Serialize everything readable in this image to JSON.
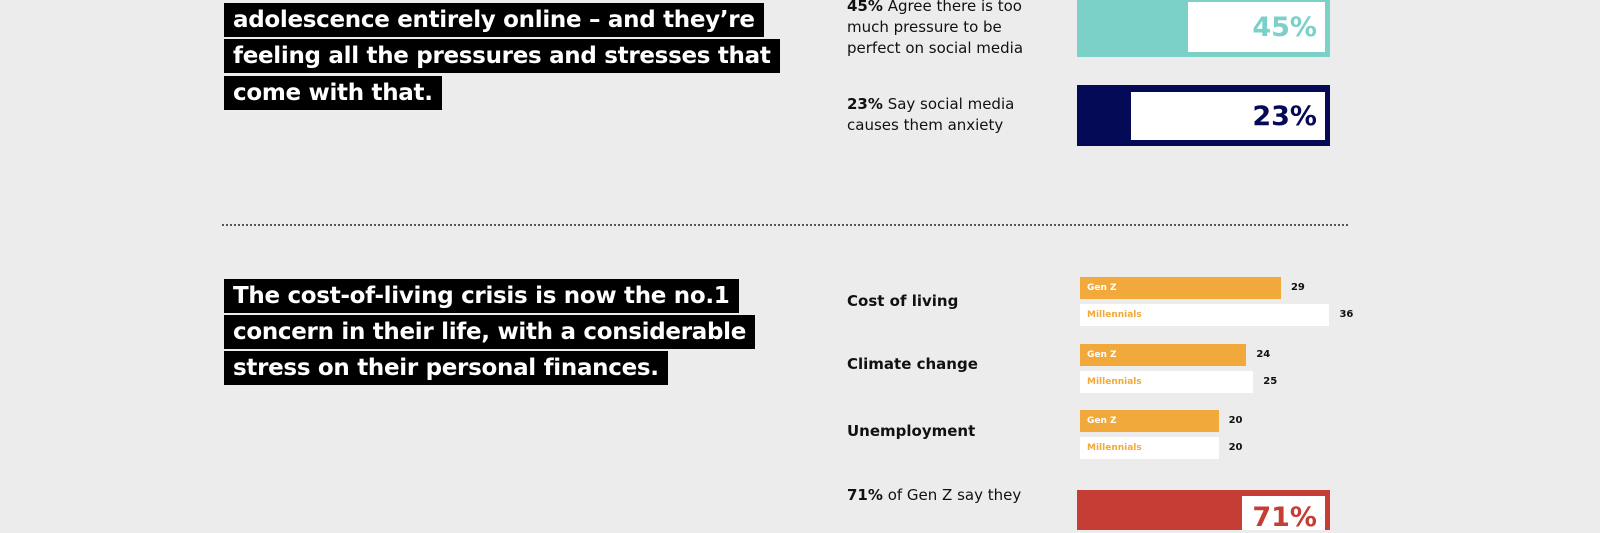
{
  "top_section": {
    "headline_lines": [
      "adolescence entirely online – and they’re",
      "feeling all the pressures and stresses that",
      "come with that."
    ],
    "stats": [
      {
        "pct": "45%",
        "text_lines": [
          "Agree there is too",
          "much pressure to be",
          "perfect on social media"
        ],
        "value": 45,
        "label": "45%",
        "color": "#7bd0c8"
      },
      {
        "pct": "23%",
        "text_lines": [
          "Say social media",
          "causes them anxiety"
        ],
        "value": 23,
        "label": "23%",
        "color": "#050a57"
      }
    ]
  },
  "bottom_section": {
    "headline_lines": [
      "The cost-of-living crisis is now the no.1",
      "concern in their life, with a considerable",
      "stress on their personal finances."
    ],
    "stat": {
      "pct": "71%",
      "text": "of Gen Z say they",
      "label": "71%",
      "color": "#c63d35"
    }
  },
  "chart_data": {
    "type": "bar",
    "orientation": "horizontal",
    "categories": [
      "Cost of living",
      "Climate change",
      "Unemployment"
    ],
    "series": [
      {
        "name": "Gen Z",
        "values": [
          29,
          24,
          20
        ],
        "color": "#f2a93b"
      },
      {
        "name": "Millennials",
        "values": [
          36,
          25,
          20
        ],
        "color": "#ffffff"
      }
    ]
  }
}
